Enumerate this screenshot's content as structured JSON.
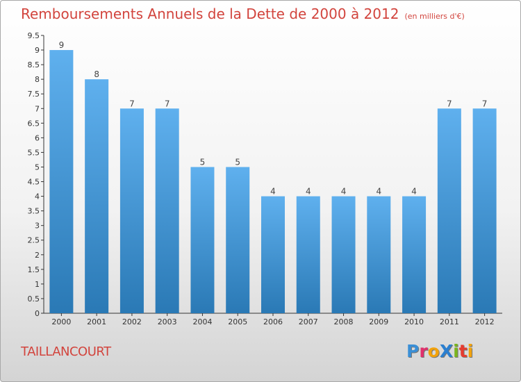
{
  "title": "Remboursements Annuels de la Dette de 2000 à 2012",
  "unit": "(en milliers d'€)",
  "commune": "TAILLANCOURT",
  "logo": {
    "text": "ProXiti",
    "letters": [
      {
        "char": "P",
        "color": "#3a8fd6"
      },
      {
        "char": "r",
        "color": "#e1306c"
      },
      {
        "char": "o",
        "color": "#f2a20b"
      },
      {
        "char": "X",
        "color": "#2b7fd0"
      },
      {
        "char": "i",
        "color": "#7ab51d"
      },
      {
        "char": "t",
        "color": "#e63b2e"
      },
      {
        "char": "i",
        "color": "#f2a20b"
      }
    ]
  },
  "colors": {
    "bar_light": "#5fb0ee",
    "bar_dark": "#2a79b5",
    "title": "#d2443d"
  },
  "chart_data": {
    "type": "bar",
    "categories": [
      "2000",
      "2001",
      "2002",
      "2003",
      "2004",
      "2005",
      "2006",
      "2007",
      "2008",
      "2009",
      "2010",
      "2011",
      "2012"
    ],
    "values": [
      9,
      8,
      7,
      7,
      5,
      5,
      4,
      4,
      4,
      4,
      4,
      7,
      7
    ],
    "data_labels": [
      "9",
      "8",
      "7",
      "7",
      "5",
      "5",
      "4",
      "4",
      "4",
      "4",
      "4",
      "7",
      "7"
    ],
    "yticks": [
      0,
      0.5,
      1,
      1.5,
      2,
      2.5,
      3,
      3.5,
      4,
      4.5,
      5,
      5.5,
      6,
      6.5,
      7,
      7.5,
      8,
      8.5,
      9,
      9.5
    ],
    "ytick_labels": [
      "0",
      "0.5",
      "1",
      "1.5",
      "2",
      "2.5",
      "3",
      "3.5",
      "4",
      "4.5",
      "5",
      "5.5",
      "6",
      "6.5",
      "7",
      "7.5",
      "8",
      "8.5",
      "9",
      "9.5"
    ],
    "ylim": [
      0,
      9.5
    ],
    "grid": false
  }
}
